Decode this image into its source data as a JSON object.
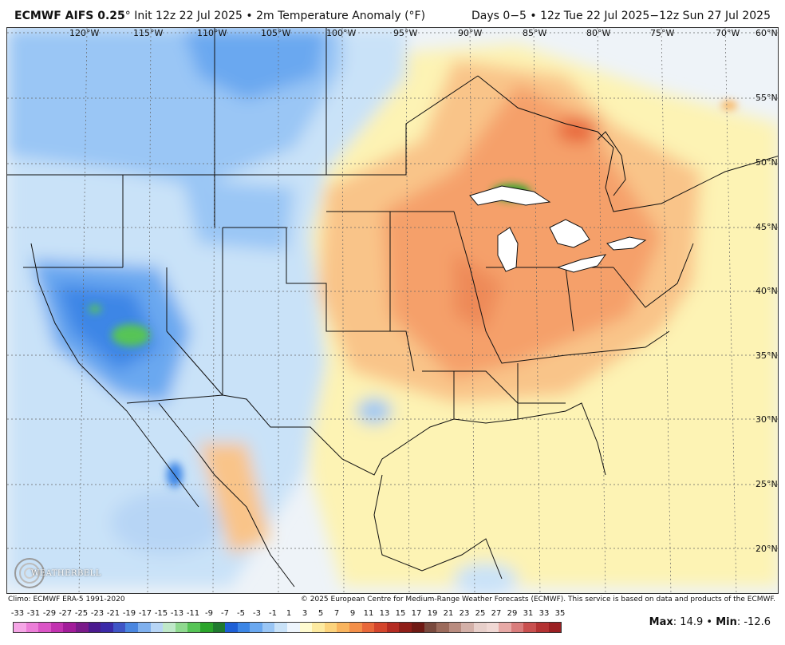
{
  "header": {
    "model": "ECMWF AIFS 0.25",
    "init": "Init 12z 22 Jul 2025",
    "field": "2m Temperature Anomaly (",
    "field_unit": "F",
    "range": "Days 0−5 • 12z Tue 22 Jul 2025−12z Sun 27 Jul 2025"
  },
  "map": {
    "lon_labels": [
      "120°W",
      "115°W",
      "110°W",
      "105°W",
      "100°W",
      "95°W",
      "90°W",
      "85°W",
      "80°W",
      "75°W",
      "70°W"
    ],
    "lat_labels": [
      "60°N",
      "55°N",
      "50°N",
      "45°N",
      "40°N",
      "35°N",
      "30°N",
      "25°N",
      "20°N"
    ],
    "logo_text": "WEATHERBELL"
  },
  "footer": {
    "climo": "Climo: ECMWF ERA-5 1991-2020",
    "copyright": "© 2025 European Centre for Medium-Range Weather Forecasts (ECMWF). This service is based on data and products of the ECMWF."
  },
  "legend": {
    "ticks": [
      "-33",
      "-31",
      "-29",
      "-27",
      "-25",
      "-23",
      "-21",
      "-19",
      "-17",
      "-15",
      "-13",
      "-11",
      "-9",
      "-7",
      "-5",
      "-3",
      "-1",
      "1",
      "3",
      "5",
      "7",
      "9",
      "11",
      "13",
      "15",
      "17",
      "19",
      "21",
      "23",
      "25",
      "27",
      "29",
      "31",
      "33",
      "35"
    ],
    "colors": [
      "#f5a6e6",
      "#ec7ed8",
      "#db55c6",
      "#c232b0",
      "#a21c9a",
      "#7a1a8a",
      "#4b1a8f",
      "#3b2aa8",
      "#3f55c6",
      "#4a86e0",
      "#7fb0ee",
      "#b7d5f5",
      "#bfe8c9",
      "#8fd98f",
      "#56c456",
      "#2aa42a",
      "#1f7a2f",
      "#1d5fd6",
      "#3c86e6",
      "#6aa8f0",
      "#9ac6f5",
      "#c9e2f8",
      "#eef5fc",
      "#fffbd0",
      "#fdeaa0",
      "#fcd37c",
      "#f9b45e",
      "#f38f49",
      "#e8683a",
      "#d4452c",
      "#b42b22",
      "#8f1e18",
      "#6f1a14",
      "#7a4a3e",
      "#9c6b5c",
      "#b98c80",
      "#d3b0a8",
      "#e7cfca",
      "#f0d8d4",
      "#e7a9a6",
      "#d97d7c",
      "#c9504f",
      "#b43232",
      "#9b1f22"
    ]
  },
  "stats": {
    "max_label": "Max",
    "max_value": "14.9",
    "min_label": "Min",
    "min_value": "-12.6"
  }
}
